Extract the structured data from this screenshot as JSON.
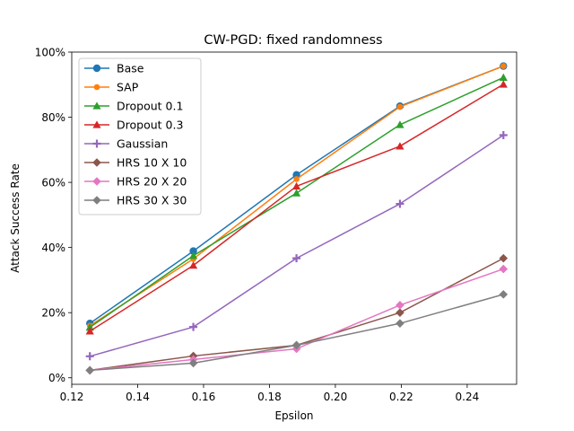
{
  "chart_data": {
    "type": "line",
    "title": "CW-PGD: fixed randomness",
    "xlabel": "Epsilon",
    "ylabel": "Attack Success Rate",
    "xlim": [
      0.12,
      0.255
    ],
    "ylim": [
      -0.02,
      1.0
    ],
    "x": [
      0.1255,
      0.1569,
      0.1882,
      0.2196,
      0.251
    ],
    "xticks": [
      0.12,
      0.14,
      0.16,
      0.18,
      0.2,
      0.22,
      0.24
    ],
    "xtick_labels": [
      "0.12",
      "0.14",
      "0.16",
      "0.18",
      "0.20",
      "0.22",
      "0.24"
    ],
    "yticks": [
      0,
      0.2,
      0.4,
      0.6,
      0.8,
      1.0
    ],
    "ytick_labels": [
      "0%",
      "20%",
      "40%",
      "60%",
      "80%",
      "100%"
    ],
    "legend_position": "upper-left",
    "series": [
      {
        "name": "Base",
        "color": "#1f77b4",
        "marker": "circle",
        "values": [
          0.167,
          0.389,
          0.623,
          0.834,
          0.957
        ]
      },
      {
        "name": "SAP",
        "color": "#ff7f0e",
        "marker": "circle-small",
        "values": [
          0.16,
          0.365,
          0.61,
          0.832,
          0.957
        ]
      },
      {
        "name": "Dropout 0.1",
        "color": "#2ca02c",
        "marker": "triangle",
        "values": [
          0.155,
          0.375,
          0.567,
          0.777,
          0.922
        ]
      },
      {
        "name": "Dropout 0.3",
        "color": "#d62728",
        "marker": "triangle",
        "values": [
          0.143,
          0.345,
          0.588,
          0.711,
          0.901
        ]
      },
      {
        "name": "Gaussian",
        "color": "#9467bd",
        "marker": "plus",
        "values": [
          0.066,
          0.156,
          0.367,
          0.534,
          0.745
        ]
      },
      {
        "name": "HRS 10 X 10",
        "color": "#8c564b",
        "marker": "diamond",
        "values": [
          0.023,
          0.067,
          0.1,
          0.2,
          0.367
        ]
      },
      {
        "name": "HRS 20 X 20",
        "color": "#e377c2",
        "marker": "diamond",
        "values": [
          0.023,
          0.056,
          0.089,
          0.223,
          0.334
        ]
      },
      {
        "name": "HRS 30 X 30",
        "color": "#7f7f7f",
        "marker": "diamond",
        "values": [
          0.023,
          0.045,
          0.1,
          0.167,
          0.256
        ]
      }
    ]
  }
}
